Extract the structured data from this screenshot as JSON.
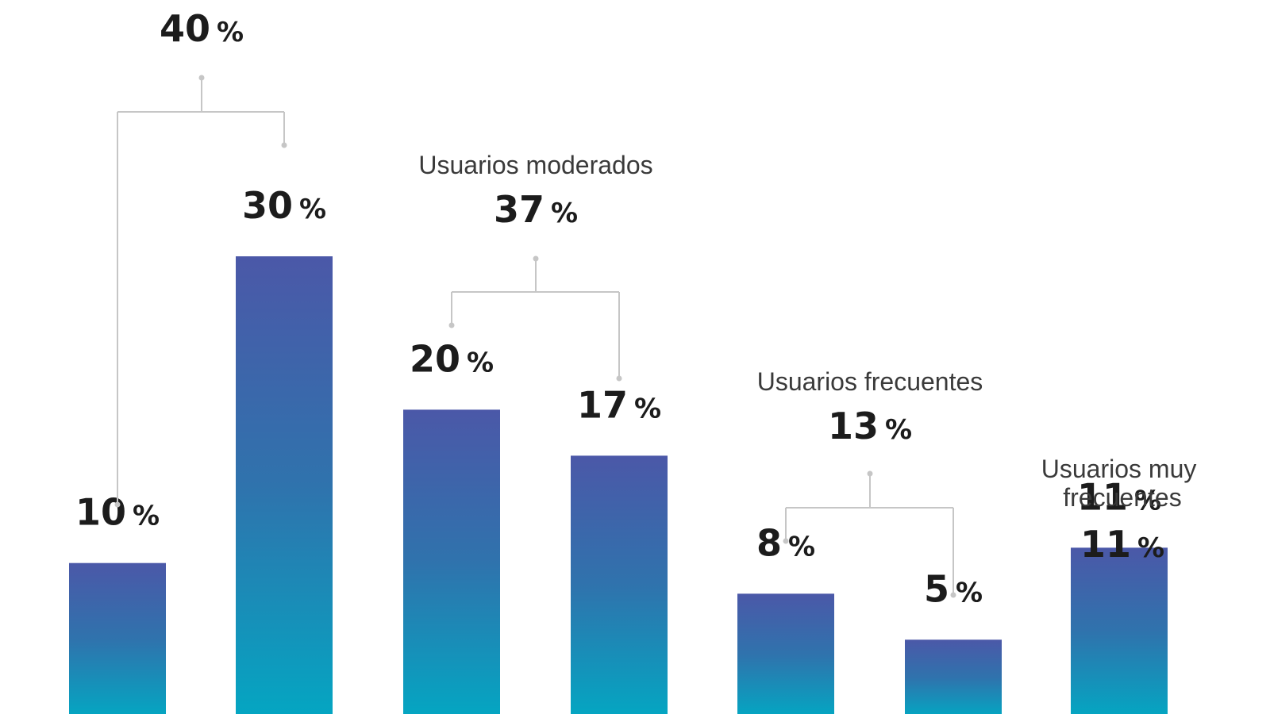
{
  "colors": {
    "bar_top": "#4b58a8",
    "bar_mid": "#2f73ad",
    "bar_bottom": "#04a6c2",
    "connector": "#c6c6c6",
    "text": "#1c1c1c"
  },
  "chart_data": {
    "type": "bar",
    "categories": [
      "",
      "",
      "",
      "",
      "",
      "",
      ""
    ],
    "values": [
      10,
      30,
      20,
      17,
      8,
      5,
      11
    ],
    "value_labels": [
      "10",
      "30",
      "20",
      "17",
      "8",
      "5",
      "11"
    ],
    "unit": "%",
    "ylim": [
      0,
      31
    ],
    "grid": false,
    "groups": [
      {
        "name": "",
        "total": "40",
        "members": [
          0,
          1
        ]
      },
      {
        "name": "Usuarios moderados",
        "total": "37",
        "members": [
          2,
          3
        ]
      },
      {
        "name": "Usuarios frecuentes",
        "total": "13",
        "members": [
          4,
          5
        ]
      },
      {
        "name": "Usuarios muy frecuentes",
        "total": "11",
        "members": [
          6
        ]
      }
    ]
  }
}
